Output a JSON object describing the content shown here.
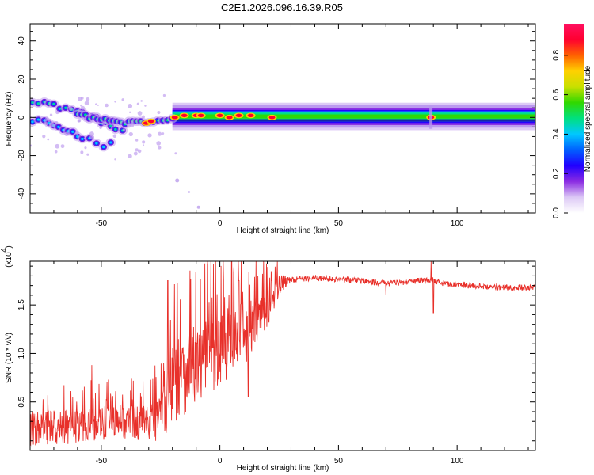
{
  "title": "C2E1.2026.096.16.39.R05",
  "chart_data": [
    {
      "type": "heatmap",
      "name": "spectrogram",
      "xlabel": "Height of straight line (km)",
      "ylabel": "Frequency (Hz)",
      "xlim": [
        -80,
        133
      ],
      "ylim": [
        -50,
        49
      ],
      "xticks": [
        -50,
        0,
        50,
        100
      ],
      "yticks": [
        40,
        20,
        0,
        -20,
        -40
      ],
      "colorbar": {
        "label": "Normalized spectral amplitude",
        "range": [
          0,
          0.96
        ],
        "ticks": [
          "0.0",
          "0.2",
          "0.4",
          "0.6",
          "0.8"
        ],
        "colors": [
          "#ffffff",
          "#dcc8f5",
          "#8a2be2",
          "#2000ff",
          "#0060ff",
          "#00c8ff",
          "#00e080",
          "#30d800",
          "#c8e000",
          "#ffd000",
          "#ff6000",
          "#ff0030",
          "#ff1060"
        ]
      },
      "ridges": [
        {
          "name": "upper-branch",
          "points": [
            [
              -79,
              9
            ],
            [
              -74,
              8
            ],
            [
              -70,
              6
            ],
            [
              -65,
              5
            ],
            [
              -60,
              3
            ],
            [
              -56,
              1
            ],
            [
              -52,
              -1
            ],
            [
              -48,
              -3
            ],
            [
              -44,
              -6
            ],
            [
              -41,
              -8
            ],
            [
              -38,
              -10
            ]
          ]
        },
        {
          "name": "lower-branch",
          "points": [
            [
              -79,
              -2
            ],
            [
              -74,
              -3
            ],
            [
              -70,
              -4
            ],
            [
              -66,
              -6
            ],
            [
              -62,
              -8
            ],
            [
              -58,
              -10
            ],
            [
              -55,
              -12
            ],
            [
              -52,
              -13
            ],
            [
              -49,
              -14
            ],
            [
              -46,
              -13
            ],
            [
              -43,
              -13
            ]
          ]
        },
        {
          "name": "middle-branch",
          "points": [
            [
              -60,
              2
            ],
            [
              -55,
              0
            ],
            [
              -50,
              -1
            ],
            [
              -45,
              -2
            ],
            [
              -40,
              -3
            ],
            [
              -35,
              -2
            ],
            [
              -30,
              -3
            ],
            [
              -26,
              -2
            ],
            [
              -22,
              -1
            ],
            [
              -18,
              0
            ],
            [
              -14,
              1
            ],
            [
              -10,
              1
            ],
            [
              -5,
              1
            ],
            [
              0,
              1
            ],
            [
              5,
              1
            ],
            [
              10,
              1
            ],
            [
              15,
              1
            ],
            [
              20,
              0
            ],
            [
              25,
              0
            ],
            [
              40,
              0
            ],
            [
              60,
              0
            ],
            [
              80,
              0
            ],
            [
              89,
              0
            ],
            [
              100,
              0
            ],
            [
              120,
              0
            ],
            [
              133,
              0
            ]
          ]
        }
      ],
      "hotspots": [
        [
          -31,
          -3
        ],
        [
          -29,
          -2
        ],
        [
          -19,
          0
        ],
        [
          -15,
          1
        ],
        [
          -10,
          1
        ],
        [
          -8,
          1
        ],
        [
          0,
          1
        ],
        [
          4,
          0
        ],
        [
          8,
          1
        ],
        [
          13,
          1
        ],
        [
          22,
          0
        ],
        [
          89,
          0
        ]
      ]
    },
    {
      "type": "line",
      "name": "snr",
      "xlabel": "Height of straight line (km)",
      "ylabel": "SNR (10 * v/v)",
      "scale_label": "(x10",
      "scale_exp": "4",
      "xlim": [
        -80,
        133
      ],
      "ylim": [
        0.0,
        1.95
      ],
      "xticks": [
        -50,
        0,
        50,
        100
      ],
      "yticks": [
        0.5,
        1.0,
        1.5
      ],
      "color": "#e8302a",
      "envelope": [
        [
          -80,
          0.22
        ],
        [
          -60,
          0.25
        ],
        [
          -40,
          0.3
        ],
        [
          -30,
          0.28
        ],
        [
          -25,
          0.4
        ],
        [
          -20,
          0.7
        ],
        [
          -10,
          0.9
        ],
        [
          0,
          1.05
        ],
        [
          10,
          1.2
        ],
        [
          20,
          1.45
        ],
        [
          25,
          1.7
        ],
        [
          30,
          1.76
        ],
        [
          40,
          1.78
        ],
        [
          60,
          1.75
        ],
        [
          70,
          1.72
        ],
        [
          80,
          1.74
        ],
        [
          89,
          1.76
        ],
        [
          95,
          1.72
        ],
        [
          105,
          1.7
        ],
        [
          120,
          1.68
        ],
        [
          133,
          1.68
        ]
      ],
      "noise": [
        [
          -80,
          0.18
        ],
        [
          -30,
          0.18
        ],
        [
          -20,
          0.45
        ],
        [
          10,
          0.35
        ],
        [
          25,
          0.12
        ],
        [
          30,
          0.03
        ],
        [
          133,
          0.03
        ]
      ],
      "features": [
        [
          -54,
          0.88
        ],
        [
          -22,
          1.75
        ],
        [
          -18,
          1.72
        ],
        [
          2,
          1.58
        ],
        [
          8,
          1.75
        ],
        [
          12,
          0.55
        ],
        [
          18,
          1.82
        ],
        [
          21,
          1.78
        ],
        [
          89,
          1.95
        ],
        [
          90,
          1.42
        ],
        [
          70,
          1.6
        ]
      ]
    }
  ]
}
